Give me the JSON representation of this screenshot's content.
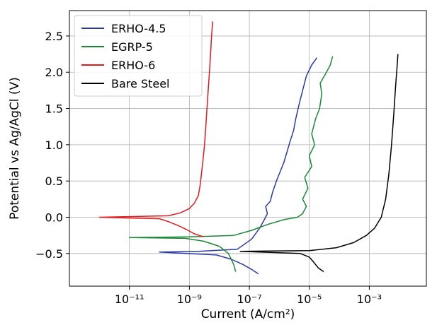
{
  "chart_data": {
    "type": "line",
    "title": "",
    "xlabel": "Current  (A/cm²)",
    "ylabel": "Potential vs Ag/AgCl  (V)",
    "x_scale": "log",
    "xlim": [
      1e-13,
      0.08
    ],
    "ylim": [
      -0.95,
      2.85
    ],
    "x_ticks": [
      {
        "value": 1e-11,
        "label": "10⁻¹¹"
      },
      {
        "value": 1e-09,
        "label": "10⁻⁹"
      },
      {
        "value": 1e-07,
        "label": "10⁻⁷"
      },
      {
        "value": 1e-05,
        "label": "10⁻⁵"
      },
      {
        "value": 0.001,
        "label": "10⁻³"
      }
    ],
    "y_ticks": [
      {
        "value": -0.5,
        "label": "−0.5"
      },
      {
        "value": 0.0,
        "label": "0.0"
      },
      {
        "value": 0.5,
        "label": "0.5"
      },
      {
        "value": 1.0,
        "label": "1.0"
      },
      {
        "value": 1.5,
        "label": "1.5"
      },
      {
        "value": 2.0,
        "label": "2.0"
      },
      {
        "value": 2.5,
        "label": "2.5"
      }
    ],
    "grid": true,
    "legend_position": "top-left",
    "series": [
      {
        "name": "ERHO-4.5",
        "color": "#2b3aa6",
        "points": [
          [
            2e-07,
            -0.78
          ],
          [
            1.2e-07,
            -0.72
          ],
          [
            6e-08,
            -0.65
          ],
          [
            2.5e-08,
            -0.58
          ],
          [
            8e-09,
            -0.52
          ],
          [
            1e-10,
            -0.48
          ],
          [
            2e-09,
            -0.47
          ],
          [
            4e-08,
            -0.44
          ],
          [
            1.2e-07,
            -0.3
          ],
          [
            2.2e-07,
            -0.15
          ],
          [
            3e-07,
            -0.05
          ],
          [
            4e-07,
            0.05
          ],
          [
            3.5e-07,
            0.15
          ],
          [
            5e-07,
            0.22
          ],
          [
            6e-07,
            0.35
          ],
          [
            8e-07,
            0.5
          ],
          [
            1e-06,
            0.6
          ],
          [
            1.4e-06,
            0.75
          ],
          [
            1.8e-06,
            0.9
          ],
          [
            2.3e-06,
            1.05
          ],
          [
            3e-06,
            1.2
          ],
          [
            3.5e-06,
            1.35
          ],
          [
            4.5e-06,
            1.55
          ],
          [
            6e-06,
            1.75
          ],
          [
            8e-06,
            1.95
          ],
          [
            1.2e-05,
            2.1
          ],
          [
            1.8e-05,
            2.2
          ]
        ]
      },
      {
        "name": "EGRP-5",
        "color": "#1a8a35",
        "points": [
          [
            3.5e-08,
            -0.75
          ],
          [
            3e-08,
            -0.65
          ],
          [
            2e-08,
            -0.5
          ],
          [
            1e-08,
            -0.4
          ],
          [
            3e-09,
            -0.33
          ],
          [
            7e-10,
            -0.29
          ],
          [
            1e-11,
            -0.28
          ],
          [
            1e-09,
            -0.27
          ],
          [
            3e-08,
            -0.25
          ],
          [
            1.2e-07,
            -0.18
          ],
          [
            4e-07,
            -0.1
          ],
          [
            1.5e-06,
            -0.03
          ],
          [
            4e-06,
            0.0
          ],
          [
            6e-06,
            0.05
          ],
          [
            8e-06,
            0.15
          ],
          [
            6e-06,
            0.25
          ],
          [
            9e-06,
            0.4
          ],
          [
            7e-06,
            0.55
          ],
          [
            1.2e-05,
            0.7
          ],
          [
            1e-05,
            0.85
          ],
          [
            1.5e-05,
            1.0
          ],
          [
            1.2e-05,
            1.15
          ],
          [
            1.6e-05,
            1.35
          ],
          [
            2.2e-05,
            1.5
          ],
          [
            2.6e-05,
            1.7
          ],
          [
            2.3e-05,
            1.85
          ],
          [
            3.5e-05,
            1.98
          ],
          [
            5e-05,
            2.1
          ],
          [
            6e-05,
            2.22
          ]
        ]
      },
      {
        "name": "ERHO-6",
        "color": "#e31a1c",
        "points": [
          [
            3e-09,
            -0.27
          ],
          [
            1.5e-09,
            -0.23
          ],
          [
            8e-10,
            -0.17
          ],
          [
            4e-10,
            -0.11
          ],
          [
            2e-10,
            -0.06
          ],
          [
            1e-10,
            -0.02
          ],
          [
            1e-12,
            0.0
          ],
          [
            2e-10,
            0.02
          ],
          [
            5e-10,
            0.06
          ],
          [
            1e-09,
            0.12
          ],
          [
            1.5e-09,
            0.2
          ],
          [
            2e-09,
            0.3
          ],
          [
            2.3e-09,
            0.45
          ],
          [
            2.7e-09,
            0.7
          ],
          [
            3.2e-09,
            1.0
          ],
          [
            3.6e-09,
            1.3
          ],
          [
            4e-09,
            1.6
          ],
          [
            4.5e-09,
            1.9
          ],
          [
            5e-09,
            2.2
          ],
          [
            5.5e-09,
            2.5
          ],
          [
            6e-09,
            2.7
          ]
        ]
      },
      {
        "name": "Bare Steel",
        "color": "#000000",
        "points": [
          [
            3e-05,
            -0.75
          ],
          [
            2e-05,
            -0.7
          ],
          [
            1.4e-05,
            -0.62
          ],
          [
            1e-05,
            -0.55
          ],
          [
            5e-06,
            -0.5
          ],
          [
            5e-08,
            -0.47
          ],
          [
            1e-05,
            -0.46
          ],
          [
            8e-05,
            -0.42
          ],
          [
            0.0003,
            -0.35
          ],
          [
            0.0008,
            -0.25
          ],
          [
            0.0015,
            -0.15
          ],
          [
            0.0025,
            0.0
          ],
          [
            0.0035,
            0.25
          ],
          [
            0.0045,
            0.6
          ],
          [
            0.0055,
            1.0
          ],
          [
            0.0065,
            1.4
          ],
          [
            0.0075,
            1.8
          ],
          [
            0.0085,
            2.1
          ],
          [
            0.009,
            2.25
          ]
        ]
      }
    ]
  }
}
